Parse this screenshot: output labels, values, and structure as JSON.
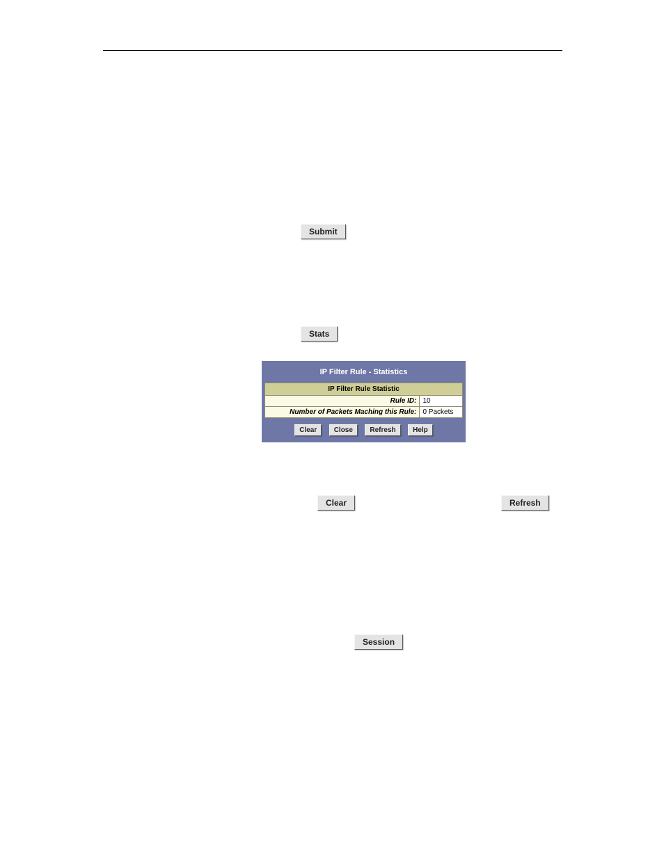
{
  "buttons": {
    "submit": "Submit",
    "stats": "Stats",
    "clear": "Clear",
    "refresh": "Refresh",
    "session": "Session"
  },
  "panel": {
    "title": "IP Filter Rule - Statistics",
    "tableHeader": "IP Filter Rule Statistic",
    "rows": [
      {
        "label": "Rule ID:",
        "value": "10"
      },
      {
        "label": "Number of Packets Maching this Rule:",
        "value": "0 Packets"
      }
    ],
    "buttons": {
      "clear": "Clear",
      "close": "Close",
      "refresh": "Refresh",
      "help": "Help"
    }
  }
}
